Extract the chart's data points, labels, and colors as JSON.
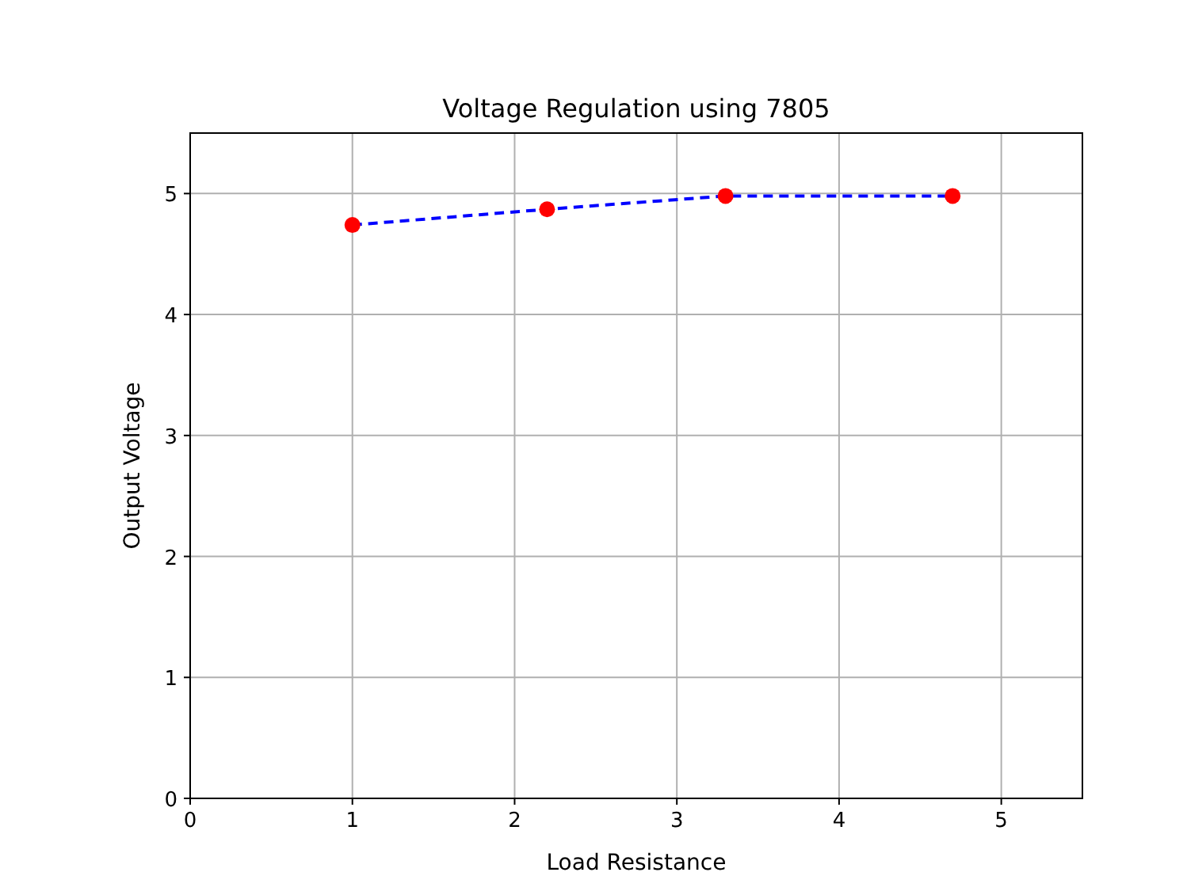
{
  "chart_data": {
    "type": "line",
    "title": "Voltage Regulation using 7805",
    "xlabel": "Load Resistance",
    "ylabel": "Output Voltage",
    "x": [
      1,
      2.2,
      3.3,
      4.7
    ],
    "series": [
      {
        "color": "#0000ff",
        "values": [
          4.74,
          4.87,
          4.98,
          4.98
        ],
        "line_style": "dashed",
        "marker": "none"
      },
      {
        "type": "scatter",
        "color": "#ff0000",
        "values": [
          4.74,
          4.87,
          4.98,
          4.98
        ],
        "marker": "circle"
      }
    ],
    "xlim": [
      0,
      5.5
    ],
    "ylim": [
      0,
      5.5
    ],
    "xticks": [
      0,
      1,
      2,
      3,
      4,
      5
    ],
    "yticks": [
      0,
      1,
      2,
      3,
      4,
      5
    ],
    "grid": true
  }
}
